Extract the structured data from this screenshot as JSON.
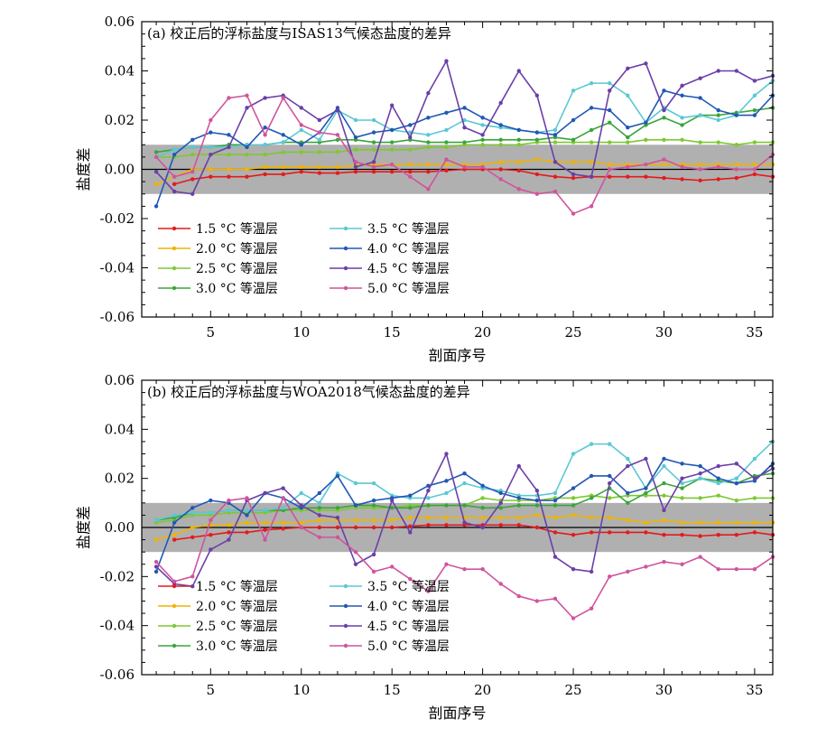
{
  "chart_data": [
    {
      "type": "line",
      "title": "(a) 校正后的浮标盐度与ISAS13气候态盐度的差异",
      "xlabel": "剖面序号",
      "ylabel": "盐度差",
      "xlim": [
        1.2,
        36
      ],
      "ylim": [
        -0.06,
        0.06
      ],
      "xticks": [
        5,
        10,
        15,
        20,
        25,
        30,
        35
      ],
      "yticks": [
        -0.06,
        -0.04,
        -0.02,
        0.0,
        0.02,
        0.04,
        0.06
      ],
      "ytick_labels": [
        "-0.06",
        "-0.04",
        "-0.02",
        "0.00",
        "0.02",
        "0.04",
        "0.06"
      ],
      "shaded_band": [
        -0.01,
        0.01
      ],
      "shaded_color": "#b0b0b0",
      "zero_line": true,
      "legend_position": "bottom-left",
      "x": [
        2,
        3,
        4,
        5,
        6,
        7,
        8,
        9,
        10,
        11,
        12,
        13,
        14,
        15,
        16,
        17,
        18,
        19,
        20,
        21,
        22,
        23,
        24,
        25,
        26,
        27,
        28,
        29,
        30,
        31,
        32,
        33,
        34,
        35,
        36
      ],
      "series": [
        {
          "name": "1.5 °C 等温层",
          "color": "#e41a1c",
          "values": [
            null,
            -0.006,
            -0.004,
            -0.003,
            -0.003,
            -0.003,
            -0.002,
            -0.002,
            -0.001,
            -0.0015,
            -0.0015,
            -0.001,
            -0.001,
            -0.001,
            -0.001,
            -0.001,
            -0.0005,
            0.0,
            0.0,
            0.0,
            -0.0005,
            -0.002,
            -0.003,
            -0.0035,
            -0.003,
            -0.003,
            -0.003,
            -0.003,
            -0.0035,
            -0.004,
            -0.0045,
            -0.004,
            -0.0035,
            -0.002,
            -0.003
          ]
        },
        {
          "name": "2.0 °C 等温层",
          "color": "#f0b400",
          "values": [
            -0.006,
            -0.003,
            0.0,
            0.0,
            0.0,
            0.0,
            0.001,
            0.001,
            0.001,
            0.001,
            0.001,
            0.0015,
            0.002,
            0.002,
            0.002,
            0.002,
            0.002,
            0.002,
            0.002,
            0.003,
            0.003,
            0.004,
            0.003,
            0.003,
            0.003,
            0.002,
            0.002,
            0.002,
            0.002,
            0.002,
            0.002,
            0.002,
            0.002,
            0.002,
            0.002
          ]
        },
        {
          "name": "2.5 °C 等温层",
          "color": "#7ec832",
          "values": [
            0.005,
            0.005,
            0.006,
            0.006,
            0.006,
            0.006,
            0.006,
            0.007,
            0.007,
            0.007,
            0.007,
            0.008,
            0.008,
            0.008,
            0.008,
            0.009,
            0.009,
            0.01,
            0.01,
            0.01,
            0.01,
            0.011,
            0.011,
            0.011,
            0.011,
            0.011,
            0.011,
            0.012,
            0.012,
            0.012,
            0.011,
            0.011,
            0.01,
            0.011,
            0.011
          ]
        },
        {
          "name": "3.0 °C 等温层",
          "color": "#3aa53a",
          "values": [
            0.007,
            0.008,
            0.009,
            0.009,
            0.01,
            0.01,
            0.01,
            0.011,
            0.011,
            0.011,
            0.012,
            0.012,
            0.011,
            0.011,
            0.012,
            0.011,
            0.011,
            0.011,
            0.012,
            0.012,
            0.012,
            0.012,
            0.013,
            0.012,
            0.016,
            0.019,
            0.013,
            0.018,
            0.021,
            0.018,
            0.022,
            0.022,
            0.023,
            0.024,
            0.025
          ]
        },
        {
          "name": "3.5 °C 等温层",
          "color": "#5bc8d4",
          "values": [
            0.005,
            0.008,
            0.009,
            0.009,
            0.009,
            0.01,
            0.01,
            0.011,
            0.016,
            0.012,
            0.024,
            0.02,
            0.02,
            0.016,
            0.015,
            0.014,
            0.016,
            0.02,
            0.018,
            0.017,
            0.016,
            0.015,
            0.016,
            0.032,
            0.035,
            0.035,
            0.03,
            0.019,
            0.025,
            0.021,
            0.022,
            0.02,
            0.022,
            0.03,
            0.036
          ]
        },
        {
          "name": "4.0 °C 等温层",
          "color": "#2158b5",
          "values": [
            -0.015,
            0.006,
            0.012,
            0.015,
            0.014,
            0.009,
            0.017,
            0.014,
            0.01,
            0.015,
            0.025,
            0.013,
            0.015,
            0.016,
            0.018,
            0.021,
            0.023,
            0.025,
            0.021,
            0.018,
            0.016,
            0.015,
            0.014,
            0.02,
            0.025,
            0.024,
            0.017,
            0.019,
            0.032,
            0.03,
            0.029,
            0.024,
            0.022,
            0.022,
            0.03
          ]
        },
        {
          "name": "4.5 °C 等温层",
          "color": "#6a3fa8",
          "values": [
            -0.001,
            -0.009,
            -0.01,
            0.006,
            0.009,
            0.025,
            0.029,
            0.03,
            0.025,
            0.02,
            0.024,
            0.001,
            0.003,
            0.026,
            0.013,
            0.031,
            0.044,
            0.017,
            0.014,
            0.027,
            0.04,
            0.03,
            0.003,
            -0.002,
            -0.003,
            0.032,
            0.041,
            0.043,
            0.024,
            0.034,
            0.037,
            0.04,
            0.04,
            0.036,
            0.038
          ]
        },
        {
          "name": "5.0 °C 等温层",
          "color": "#d0549d",
          "values": [
            0.005,
            -0.003,
            -0.001,
            0.02,
            0.029,
            0.03,
            0.014,
            0.029,
            0.018,
            0.015,
            0.014,
            0.003,
            0.001,
            0.002,
            -0.003,
            -0.008,
            0.004,
            0.001,
            0.001,
            -0.004,
            -0.008,
            -0.01,
            -0.009,
            -0.018,
            -0.015,
            0.0,
            0.001,
            0.002,
            0.004,
            0.001,
            0.0,
            0.001,
            0.0,
            0.0,
            0.006
          ]
        }
      ]
    },
    {
      "type": "line",
      "title": "(b) 校正后的浮标盐度与WOA2018气候态盐度的差异",
      "xlabel": "剖面序号",
      "ylabel": "盐度差",
      "xlim": [
        1.2,
        36
      ],
      "ylim": [
        -0.06,
        0.06
      ],
      "xticks": [
        5,
        10,
        15,
        20,
        25,
        30,
        35
      ],
      "yticks": [
        -0.06,
        -0.04,
        -0.02,
        0.0,
        0.02,
        0.04,
        0.06
      ],
      "ytick_labels": [
        "-0.06",
        "-0.04",
        "-0.02",
        "0.00",
        "0.02",
        "0.04",
        "0.06"
      ],
      "shaded_band": [
        -0.01,
        0.01
      ],
      "shaded_color": "#b0b0b0",
      "zero_line": true,
      "legend_position": "bottom-left",
      "x": [
        2,
        3,
        4,
        5,
        6,
        7,
        8,
        9,
        10,
        11,
        12,
        13,
        14,
        15,
        16,
        17,
        18,
        19,
        20,
        21,
        22,
        23,
        24,
        25,
        26,
        27,
        28,
        29,
        30,
        31,
        32,
        33,
        34,
        35,
        36
      ],
      "series": [
        {
          "name": "1.5 °C 等温层",
          "color": "#e41a1c",
          "values": [
            null,
            -0.005,
            -0.004,
            -0.003,
            -0.002,
            -0.002,
            -0.001,
            -0.0005,
            0.0,
            0.0,
            0.0,
            0.0,
            0.0,
            0.0,
            0.0005,
            0.001,
            0.001,
            0.001,
            0.001,
            0.001,
            0.001,
            0.0,
            -0.002,
            -0.003,
            -0.002,
            -0.002,
            -0.002,
            -0.002,
            -0.003,
            -0.003,
            -0.0035,
            -0.003,
            -0.003,
            -0.002,
            -0.003
          ]
        },
        {
          "name": "2.0 °C 等温层",
          "color": "#f0b400",
          "values": [
            -0.005,
            -0.003,
            0.0,
            0.001,
            0.001,
            0.002,
            0.002,
            0.002,
            0.002,
            0.003,
            0.003,
            0.003,
            0.003,
            0.003,
            0.004,
            0.004,
            0.004,
            0.004,
            0.004,
            0.004,
            0.004,
            0.005,
            0.004,
            0.005,
            0.004,
            0.004,
            0.003,
            0.002,
            0.003,
            0.002,
            0.002,
            0.002,
            0.002,
            0.002,
            0.002
          ]
        },
        {
          "name": "2.5 °C 等温层",
          "color": "#7ec832",
          "values": [
            0.002,
            0.003,
            0.005,
            0.005,
            0.006,
            0.006,
            0.006,
            0.007,
            0.007,
            0.007,
            0.007,
            0.008,
            0.008,
            0.008,
            0.009,
            0.009,
            0.009,
            0.009,
            0.012,
            0.011,
            0.011,
            0.011,
            0.012,
            0.012,
            0.013,
            0.012,
            0.013,
            0.013,
            0.013,
            0.012,
            0.012,
            0.013,
            0.011,
            0.012,
            0.012
          ]
        },
        {
          "name": "3.0 °C 等温层",
          "color": "#3aa53a",
          "values": [
            0.003,
            0.004,
            0.006,
            0.006,
            0.007,
            0.007,
            0.007,
            0.007,
            0.008,
            0.008,
            0.008,
            0.009,
            0.009,
            0.008,
            0.008,
            0.009,
            0.009,
            0.009,
            0.008,
            0.008,
            0.009,
            0.009,
            0.009,
            0.009,
            0.012,
            0.016,
            0.01,
            0.014,
            0.018,
            0.016,
            0.02,
            0.019,
            0.018,
            0.021,
            0.022
          ]
        },
        {
          "name": "3.5 °C 等温层",
          "color": "#5bc8d4",
          "values": [
            0.003,
            0.005,
            0.006,
            0.006,
            0.007,
            0.007,
            0.007,
            0.008,
            0.014,
            0.01,
            0.022,
            0.018,
            0.018,
            0.013,
            0.012,
            0.012,
            0.014,
            0.018,
            0.016,
            0.015,
            0.013,
            0.013,
            0.014,
            0.03,
            0.034,
            0.034,
            0.028,
            0.016,
            0.025,
            0.018,
            0.02,
            0.018,
            0.02,
            0.028,
            0.035
          ]
        },
        {
          "name": "4.0 °C 等温层",
          "color": "#2158b5",
          "values": [
            -0.018,
            0.002,
            0.008,
            0.011,
            0.01,
            0.005,
            0.014,
            0.012,
            0.008,
            0.014,
            0.021,
            0.009,
            0.011,
            0.012,
            0.013,
            0.017,
            0.019,
            0.022,
            0.017,
            0.014,
            0.012,
            0.011,
            0.011,
            0.016,
            0.021,
            0.021,
            0.014,
            0.016,
            0.028,
            0.026,
            0.025,
            0.02,
            0.018,
            0.019,
            0.026
          ]
        },
        {
          "name": "4.5 °C 等温层",
          "color": "#6a3fa8",
          "values": [
            -0.016,
            -0.023,
            -0.024,
            -0.009,
            -0.005,
            0.011,
            0.014,
            0.016,
            0.009,
            0.005,
            0.004,
            -0.015,
            -0.011,
            0.011,
            -0.002,
            0.015,
            0.03,
            0.002,
            0.0,
            0.01,
            0.025,
            0.015,
            -0.012,
            -0.017,
            -0.018,
            0.018,
            0.025,
            0.028,
            0.007,
            0.02,
            0.022,
            0.025,
            0.026,
            0.02,
            0.024
          ]
        },
        {
          "name": "5.0 °C 等温层",
          "color": "#d0549d",
          "values": [
            -0.014,
            -0.022,
            -0.02,
            0.003,
            0.011,
            0.012,
            -0.005,
            0.012,
            0.0,
            -0.004,
            -0.004,
            -0.01,
            -0.018,
            -0.016,
            -0.021,
            -0.026,
            -0.015,
            -0.017,
            -0.017,
            -0.023,
            -0.028,
            -0.03,
            -0.029,
            -0.037,
            -0.033,
            -0.02,
            -0.018,
            -0.016,
            -0.014,
            -0.015,
            -0.012,
            -0.017,
            -0.017,
            -0.017,
            -0.012
          ]
        }
      ]
    }
  ]
}
